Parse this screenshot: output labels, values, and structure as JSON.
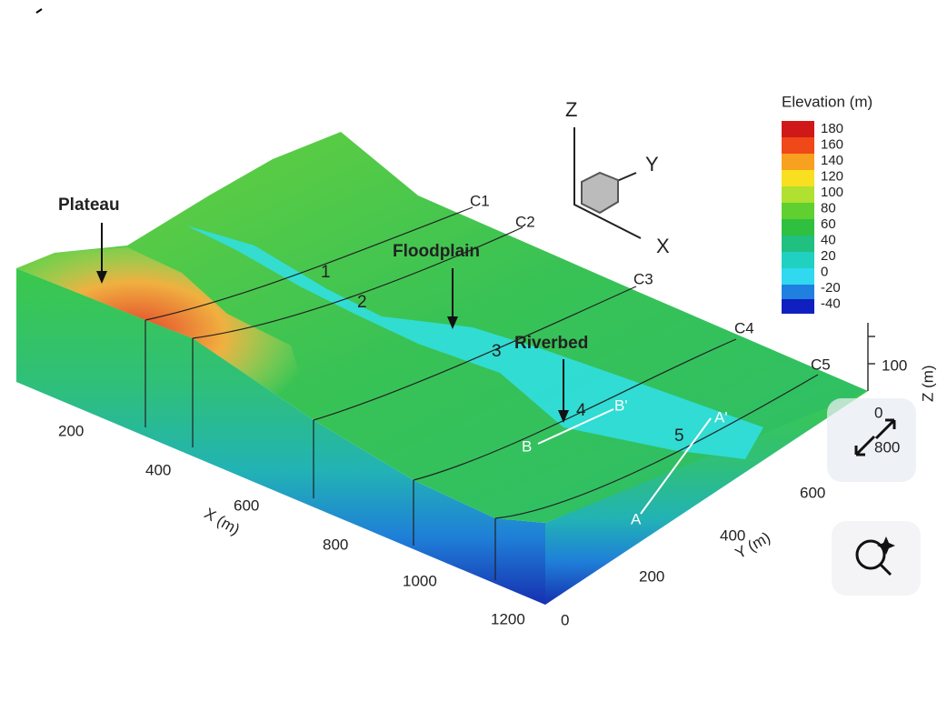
{
  "figure": {
    "colorbar": {
      "title": "Elevation (m)",
      "labels": [
        "180",
        "160",
        "140",
        "120",
        "100",
        "80",
        "60",
        "40",
        "20",
        "0",
        "-20",
        "-40"
      ]
    },
    "annotations": {
      "plateau": "Plateau",
      "floodplain": "Floodplain",
      "riverbed": "Riverbed"
    },
    "sections": [
      "C1",
      "C2",
      "C3",
      "C4",
      "C5"
    ],
    "points": [
      "1",
      "2",
      "3",
      "4",
      "5"
    ],
    "profiles": [
      "A",
      "A'",
      "B",
      "B'"
    ],
    "triad": [
      "Z",
      "Y",
      "X"
    ],
    "axes": {
      "x": {
        "label": "X (m)",
        "ticks": [
          "200",
          "400",
          "600",
          "800",
          "1000",
          "1200"
        ]
      },
      "y": {
        "label": "Y (m)",
        "ticks": [
          "0",
          "200",
          "400",
          "600",
          "800"
        ]
      },
      "z": {
        "label": "Z (m)",
        "ticks": [
          "0",
          "100"
        ]
      }
    }
  }
}
